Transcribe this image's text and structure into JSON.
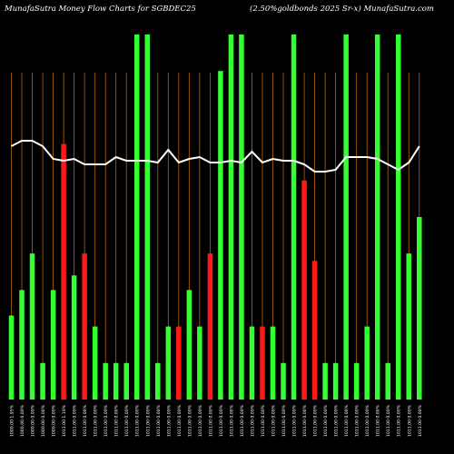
{
  "header": {
    "title": "MunafaSutra  Money Flow  Charts for SGBDEC25",
    "subtitle": "(2.50%goldbonds 2025 Sr-x) MunafaSutra.com"
  },
  "colors": {
    "background": "#000000",
    "grid": "#b8650a",
    "up_bar": "#33ff33",
    "down_bar": "#ff1a1a",
    "line": "#ffffff",
    "text": "#ffffff"
  },
  "chart_data": {
    "type": "bar",
    "title": "MunafaSutra  Money Flow  Charts for SGBDEC25",
    "subtitle": "(2.50%goldbonds 2025 Sr-x) MunafaSutra.com",
    "categories": [
      "1000.00 1.95%",
      "1000.00 0.00%",
      "1000.00 0.00%",
      "1000.00 0.00%",
      "1000.00 0.00%",
      "1011.00 1.10%",
      "1011.00 0.00%",
      "1011.00 0.00%",
      "1011.00 0.00%",
      "1011.00 0.00%",
      "1011.00 0.00%",
      "1011.00 0.00%",
      "1011.00 0.00%",
      "1011.00 0.00%",
      "1011.00 0.00%",
      "1011.00 0.00%",
      "1011.00 0.00%",
      "1011.00 0.00%",
      "1011.00 0.00%",
      "1011.00 0.00%",
      "1011.00 0.00%",
      "1011.00 0.00%",
      "1011.00 0.00%",
      "1011.00 0.00%",
      "1011.00 0.00%",
      "1011.00 0.00%",
      "1011.00 0.00%",
      "1011.00 0.00%",
      "1011.00 0.00%",
      "1011.00 0.00%",
      "1011.00 0.00%",
      "1011.00 0.00%",
      "1011.00 0.00%",
      "1011.00 0.00%",
      "1011.00 0.00%",
      "1011.00 0.00%",
      "1011.00 0.00%",
      "1011.00 0.00%",
      "1011.00 0.00%",
      "1011.00 0.00%"
    ],
    "bar_values": [
      23,
      30,
      40,
      10,
      30,
      70,
      34,
      40,
      20,
      10,
      10,
      10,
      100,
      100,
      10,
      20,
      20,
      30,
      20,
      40,
      90,
      100,
      100,
      20,
      20,
      20,
      10,
      100,
      60,
      38,
      10,
      10,
      100,
      10,
      20,
      100,
      10,
      100,
      40,
      50
    ],
    "bar_colors": [
      "green",
      "green",
      "green",
      "green",
      "green",
      "red",
      "green",
      "red",
      "green",
      "green",
      "green",
      "green",
      "green",
      "green",
      "green",
      "green",
      "red",
      "green",
      "green",
      "red",
      "green",
      "green",
      "green",
      "green",
      "red",
      "green",
      "green",
      "green",
      "red",
      "red",
      "green",
      "green",
      "green",
      "green",
      "green",
      "green",
      "green",
      "green",
      "green",
      "green"
    ],
    "line_values": [
      62,
      65,
      65,
      62,
      55,
      54,
      55,
      52,
      52,
      52,
      56,
      54,
      54,
      54,
      53,
      60,
      53,
      55,
      56,
      53,
      53,
      54,
      53,
      59,
      53,
      55,
      54,
      54,
      52,
      48,
      48,
      49,
      56,
      56,
      56,
      55,
      52,
      49,
      53,
      62
    ],
    "ylim": [
      0,
      100
    ],
    "grid": true
  }
}
